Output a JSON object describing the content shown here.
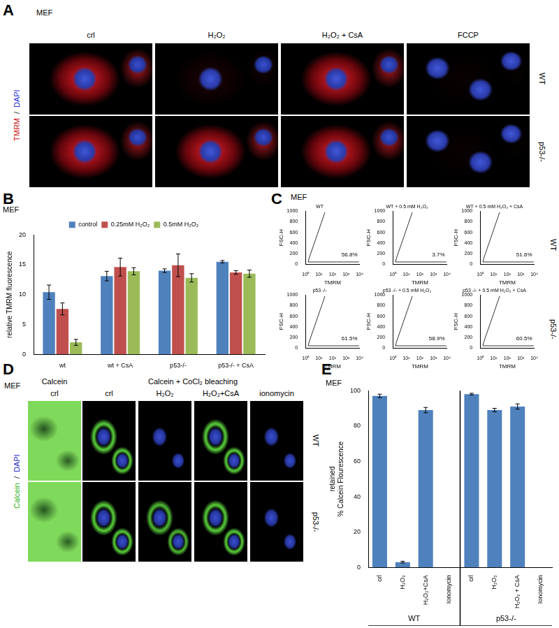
{
  "figure": {
    "A": {
      "label": "A",
      "cell": "MEF",
      "stain": [
        "TMRM",
        "/",
        "DAPI"
      ],
      "columns": [
        "crl",
        "H₂O₂",
        "H₂O₂ + CsA",
        "FCCP"
      ],
      "rows": [
        "WT",
        "p53-/-"
      ]
    },
    "B": {
      "label": "B"
    },
    "C": {
      "label": "C",
      "cell": "MEF",
      "rows": [
        "WT",
        "p53-/-"
      ]
    },
    "D": {
      "label": "D",
      "cell": "MEF",
      "stain": [
        "Calcein",
        "/",
        "DAPI"
      ],
      "headers": [
        "Calcein",
        "Calcein + CoCl₂ bleaching"
      ],
      "columns": [
        "crl",
        "crl",
        "H₂O₂",
        "H₂O₂+CsA",
        "ionomycin"
      ],
      "rows": [
        "WT",
        "p53-/-"
      ]
    },
    "E": {
      "label": "E"
    }
  },
  "chart_data": [
    {
      "type": "bar",
      "title": "MEF",
      "ylabel": "relative TMRM fluorescence",
      "categories": [
        "wt",
        "wt + CsA",
        "p53-/-",
        "p53-/- + CsA"
      ],
      "series": [
        {
          "name": "control",
          "color": "#4f81bd",
          "values": [
            10.4,
            13.1,
            14.0,
            15.5
          ],
          "errors": [
            1.2,
            0.8,
            0.3,
            0.2
          ]
        },
        {
          "name": "0.25mM H₂O₂",
          "color": "#c0504d",
          "values": [
            7.6,
            14.6,
            14.9,
            13.7
          ],
          "errors": [
            1.0,
            1.5,
            1.9,
            0.3
          ]
        },
        {
          "name": "0.5mM H₂O₂",
          "color": "#9bbb59",
          "values": [
            2.0,
            13.9,
            12.8,
            13.5
          ],
          "errors": [
            0.5,
            0.6,
            0.7,
            0.6
          ]
        }
      ],
      "ylim": [
        0,
        20
      ],
      "yticks": [
        0,
        5,
        10,
        15,
        20
      ],
      "grid": false,
      "legend": "top"
    },
    {
      "type": "bar",
      "title": "MEF",
      "ylabel": [
        "retained",
        "% Calcein Flourescence"
      ],
      "categories": [
        "crl",
        "H₂O₂",
        "H₂O₂+CsA",
        "Ionomycin",
        "crl",
        "H₂O₂",
        "H₂O₂ + CsA",
        "Ionomycin"
      ],
      "values": [
        97,
        3,
        89,
        0,
        98,
        89,
        91,
        0
      ],
      "errors": [
        1,
        0.5,
        1.5,
        0,
        0.5,
        1,
        1.5,
        0
      ],
      "color": "#4f81bd",
      "ylim": [
        0,
        100
      ],
      "yticks": [
        0,
        20,
        40,
        60,
        80,
        100
      ],
      "grid": false,
      "groups": [
        {
          "name": "WT",
          "size": 4
        },
        {
          "name": "p53-/-",
          "size": 4
        }
      ]
    },
    {
      "type": "scatter",
      "title": "WT",
      "xlabel": "TMRM",
      "ylabel": "FSC-H",
      "log": "x",
      "xlim": [
        1,
        10000
      ],
      "xticks": [
        {
          "value": 1,
          "label": "10⁰"
        },
        {
          "value": 10,
          "label": "10¹"
        },
        {
          "value": 100,
          "label": "10²"
        },
        {
          "value": 1000,
          "label": "10³"
        },
        {
          "value": 10000,
          "label": "10⁴"
        }
      ],
      "ylim": [
        0,
        1000
      ],
      "yticks": [
        0,
        200,
        400,
        600,
        800,
        1000
      ],
      "annotation": "56.8%"
    },
    {
      "type": "scatter",
      "title": "WT + 0.5 mM H₂O₂",
      "xlabel": "TMRM",
      "ylabel": "FSC-H",
      "log": "x",
      "xlim": [
        1,
        10000
      ],
      "xticks": [
        {
          "value": 1,
          "label": "10⁰"
        },
        {
          "value": 10,
          "label": "10¹"
        },
        {
          "value": 100,
          "label": "10²"
        },
        {
          "value": 1000,
          "label": "10³"
        },
        {
          "value": 10000,
          "label": "10⁴"
        }
      ],
      "ylim": [
        0,
        1000
      ],
      "yticks": [
        0,
        200,
        400,
        600,
        800,
        1000
      ],
      "annotation": "3.7%"
    },
    {
      "type": "scatter",
      "title": "WT + 0.5 mM H₂O₂ + CsA",
      "xlabel": "TMRM",
      "ylabel": "FSC-H",
      "log": "x",
      "xlim": [
        1,
        10000
      ],
      "xticks": [
        {
          "value": 1,
          "label": "10⁰"
        },
        {
          "value": 10,
          "label": "10¹"
        },
        {
          "value": 100,
          "label": "10²"
        },
        {
          "value": 1000,
          "label": "10³"
        },
        {
          "value": 10000,
          "label": "10⁴"
        }
      ],
      "ylim": [
        0,
        1000
      ],
      "yticks": [
        0,
        200,
        400,
        600,
        800,
        1000
      ],
      "annotation": "51.6%"
    },
    {
      "type": "scatter",
      "title": "p53 -/-",
      "xlabel": "TMRM",
      "ylabel": "FSC-H",
      "log": "x",
      "xlim": [
        1,
        10000
      ],
      "xticks": [
        {
          "value": 1,
          "label": "10⁰"
        },
        {
          "value": 10,
          "label": "10¹"
        },
        {
          "value": 100,
          "label": "10²"
        },
        {
          "value": 1000,
          "label": "10³"
        },
        {
          "value": 10000,
          "label": "10⁴"
        }
      ],
      "ylim": [
        0,
        1000
      ],
      "yticks": [
        0,
        200,
        400,
        600,
        800,
        1000
      ],
      "annotation": "61.5%"
    },
    {
      "type": "scatter",
      "title": "p53 -/- + 0.5 mM H₂O₂",
      "xlabel": "TMRM",
      "ylabel": "FSC-H",
      "log": "x",
      "xlim": [
        1,
        10000
      ],
      "xticks": [
        {
          "value": 1,
          "label": "10⁰"
        },
        {
          "value": 10,
          "label": "10¹"
        },
        {
          "value": 100,
          "label": "10²"
        },
        {
          "value": 1000,
          "label": "10³"
        },
        {
          "value": 10000,
          "label": "10⁴"
        }
      ],
      "ylim": [
        0,
        1000
      ],
      "yticks": [
        0,
        200,
        400,
        600,
        800,
        1000
      ],
      "annotation": "58.9%"
    },
    {
      "type": "scatter",
      "title": "p53 -/- + 0.5 mM H₂O₂ + CsA",
      "xlabel": "TMRM",
      "ylabel": "FSC-H",
      "log": "x",
      "xlim": [
        1,
        10000
      ],
      "xticks": [
        {
          "value": 1,
          "label": "10⁰"
        },
        {
          "value": 10,
          "label": "10¹"
        },
        {
          "value": 100,
          "label": "10²"
        },
        {
          "value": 1000,
          "label": "10³"
        },
        {
          "value": 10000,
          "label": "10⁴"
        }
      ],
      "ylim": [
        0,
        1000
      ],
      "yticks": [
        0,
        200,
        400,
        600,
        800,
        1000
      ],
      "annotation": "60.5%"
    }
  ]
}
